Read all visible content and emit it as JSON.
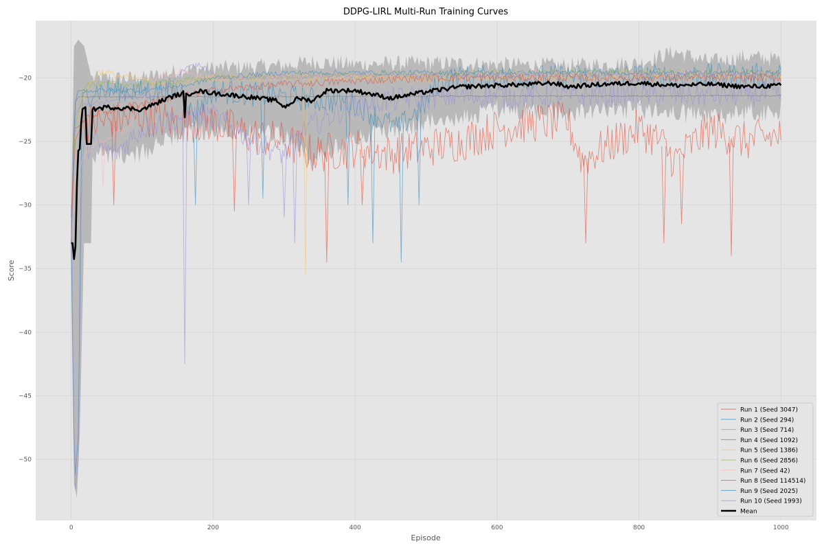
{
  "chart_data": {
    "type": "line",
    "title": "DDPG-LIRL Multi-Run Training Curves",
    "xlabel": "Episode",
    "ylabel": "Score",
    "xlim": [
      -50,
      1050
    ],
    "ylim": [
      -54.8,
      -15.5
    ],
    "xticks": [
      0,
      200,
      400,
      600,
      800,
      1000
    ],
    "yticks": [
      -20,
      -25,
      -30,
      -35,
      -40,
      -45,
      -50
    ],
    "grid": true,
    "legend_position": "lower-right",
    "colors": {
      "plot_bg": "#e5e5e5",
      "grid": "#d3d3d3",
      "mean": "#000000",
      "band": "#a9a9a9"
    },
    "series": [
      {
        "name": "Run 1 (Seed 3047)",
        "color": "#e24a33",
        "points": [
          [
            0,
            -31
          ],
          [
            5,
            -24
          ],
          [
            20,
            -23.5
          ],
          [
            50,
            -23.5
          ],
          [
            100,
            -23
          ],
          [
            150,
            -23.5
          ],
          [
            200,
            -23.5
          ],
          [
            225,
            -24
          ],
          [
            250,
            -24.5
          ],
          [
            300,
            -25
          ],
          [
            340,
            -26
          ],
          [
            400,
            -25.5
          ],
          [
            450,
            -26
          ],
          [
            500,
            -25.5
          ],
          [
            550,
            -25
          ],
          [
            600,
            -24
          ],
          [
            650,
            -23.5
          ],
          [
            700,
            -23.5
          ],
          [
            720,
            -26.5
          ],
          [
            750,
            -25.5
          ],
          [
            800,
            -24
          ],
          [
            830,
            -25
          ],
          [
            850,
            -26.5
          ],
          [
            880,
            -25
          ],
          [
            900,
            -24
          ],
          [
            950,
            -25
          ],
          [
            1000,
            -24.5
          ]
        ],
        "spikes": [
          [
            60,
            -30
          ],
          [
            230,
            -30.5
          ],
          [
            360,
            -34.5
          ],
          [
            410,
            -30
          ],
          [
            725,
            -33
          ],
          [
            835,
            -33
          ],
          [
            860,
            -31.5
          ],
          [
            930,
            -34
          ]
        ]
      },
      {
        "name": "Run 2 (Seed 294)",
        "color": "#348abd",
        "points": [
          [
            0,
            -33
          ],
          [
            5,
            -52
          ],
          [
            10,
            -48
          ],
          [
            15,
            -22
          ],
          [
            30,
            -21
          ],
          [
            100,
            -21
          ],
          [
            160,
            -21
          ],
          [
            170,
            -23
          ],
          [
            200,
            -21
          ],
          [
            300,
            -21.5
          ],
          [
            400,
            -22
          ],
          [
            460,
            -24
          ],
          [
            500,
            -22
          ],
          [
            520,
            -20
          ],
          [
            1000,
            -19.8
          ]
        ],
        "spikes": [
          [
            175,
            -30
          ],
          [
            270,
            -29.5
          ],
          [
            390,
            -30
          ],
          [
            425,
            -33
          ],
          [
            465,
            -34.5
          ],
          [
            490,
            -30
          ]
        ]
      },
      {
        "name": "Run 3 (Seed 714)",
        "color": "#988ed5",
        "points": [
          [
            0,
            -30
          ],
          [
            5,
            -53
          ],
          [
            10,
            -50
          ],
          [
            15,
            -26
          ],
          [
            30,
            -25
          ],
          [
            60,
            -26
          ],
          [
            100,
            -24
          ],
          [
            160,
            -23
          ],
          [
            200,
            -23
          ],
          [
            260,
            -25
          ],
          [
            300,
            -26
          ],
          [
            330,
            -24
          ],
          [
            400,
            -22
          ],
          [
            500,
            -21.5
          ],
          [
            1000,
            -21.3
          ]
        ],
        "spikes": [
          [
            160,
            -42.5
          ],
          [
            250,
            -30
          ],
          [
            300,
            -31
          ],
          [
            315,
            -33
          ]
        ]
      },
      {
        "name": "Run 4 (Seed 1092)",
        "color": "#777777",
        "points": [
          [
            0,
            -33
          ],
          [
            5,
            -22
          ],
          [
            10,
            -21.5
          ],
          [
            1000,
            -21.4
          ]
        ],
        "spikes": []
      },
      {
        "name": "Run 5 (Seed 1386)",
        "color": "#fbc15e",
        "points": [
          [
            0,
            -33
          ],
          [
            5,
            -24
          ],
          [
            20,
            -21
          ],
          [
            40,
            -19.5
          ],
          [
            80,
            -20
          ],
          [
            150,
            -20.5
          ],
          [
            200,
            -20
          ],
          [
            300,
            -20
          ],
          [
            400,
            -20
          ],
          [
            600,
            -20
          ],
          [
            800,
            -19.8
          ],
          [
            1000,
            -19.8
          ]
        ],
        "spikes": [
          [
            330,
            -35.5
          ]
        ]
      },
      {
        "name": "Run 6 (Seed 2856)",
        "color": "#8eba42",
        "points": [
          [
            0,
            -33
          ],
          [
            5,
            -24
          ],
          [
            20,
            -20.5
          ],
          [
            100,
            -20.5
          ],
          [
            200,
            -20
          ],
          [
            400,
            -19.8
          ],
          [
            600,
            -19.6
          ],
          [
            800,
            -19.5
          ],
          [
            1000,
            -19.6
          ]
        ],
        "spikes": []
      },
      {
        "name": "Run 7 (Seed 42)",
        "color": "#ffb5b8",
        "points": [
          [
            0,
            -33
          ],
          [
            5,
            -28
          ],
          [
            20,
            -26
          ],
          [
            40,
            -25
          ],
          [
            80,
            -24
          ],
          [
            120,
            -20
          ],
          [
            160,
            -19.6
          ],
          [
            200,
            -20
          ],
          [
            400,
            -19.8
          ],
          [
            700,
            -19.6
          ],
          [
            1000,
            -19.6
          ]
        ],
        "spikes": [
          [
            45,
            -28.5
          ]
        ]
      },
      {
        "name": "Run 8 (Seed 114514)",
        "color": "#e24a33",
        "points": [
          [
            0,
            -33
          ],
          [
            5,
            -25
          ],
          [
            20,
            -23
          ],
          [
            60,
            -22.5
          ],
          [
            100,
            -22
          ],
          [
            150,
            -21.5
          ],
          [
            200,
            -21
          ],
          [
            300,
            -20.5
          ],
          [
            500,
            -20
          ],
          [
            1000,
            -20
          ]
        ],
        "spikes": []
      },
      {
        "name": "Run 9 (Seed 2025)",
        "color": "#348abd",
        "points": [
          [
            0,
            -33
          ],
          [
            5,
            -22
          ],
          [
            10,
            -21
          ],
          [
            100,
            -21
          ],
          [
            170,
            -20.5
          ],
          [
            200,
            -20
          ],
          [
            300,
            -19.6
          ],
          [
            500,
            -19.6
          ],
          [
            1000,
            -19.6
          ]
        ],
        "spikes": []
      },
      {
        "name": "Run 10 (Seed 1993)",
        "color": "#988ed5",
        "points": [
          [
            0,
            -33
          ],
          [
            5,
            -23
          ],
          [
            15,
            -22
          ],
          [
            40,
            -22
          ],
          [
            80,
            -21.5
          ],
          [
            120,
            -21.5
          ],
          [
            165,
            -19
          ],
          [
            180,
            -19
          ],
          [
            210,
            -20
          ],
          [
            400,
            -19.8
          ],
          [
            1000,
            -19.7
          ]
        ],
        "spikes": []
      }
    ],
    "mean": {
      "name": "Mean",
      "points": [
        [
          0,
          -33
        ],
        [
          3,
          -33
        ],
        [
          5,
          -35.5
        ],
        [
          7,
          -31
        ],
        [
          9,
          -25.8
        ],
        [
          12,
          -25.6
        ],
        [
          15,
          -22.5
        ],
        [
          20,
          -22.3
        ],
        [
          22,
          -25.2
        ],
        [
          28,
          -25.2
        ],
        [
          30,
          -22.5
        ],
        [
          50,
          -22.3
        ],
        [
          80,
          -22.4
        ],
        [
          100,
          -22.5
        ],
        [
          120,
          -22
        ],
        [
          140,
          -21.5
        ],
        [
          158,
          -21.2
        ],
        [
          160,
          -23.2
        ],
        [
          162,
          -21.4
        ],
        [
          175,
          -21
        ],
        [
          200,
          -21.2
        ],
        [
          250,
          -21.5
        ],
        [
          290,
          -21.8
        ],
        [
          300,
          -22.3
        ],
        [
          320,
          -21.6
        ],
        [
          340,
          -21.8
        ],
        [
          360,
          -21
        ],
        [
          400,
          -21
        ],
        [
          450,
          -21.6
        ],
        [
          480,
          -21.3
        ],
        [
          500,
          -21.1
        ],
        [
          550,
          -20.7
        ],
        [
          600,
          -20.6
        ],
        [
          650,
          -20.5
        ],
        [
          680,
          -20.4
        ],
        [
          700,
          -20.7
        ],
        [
          750,
          -20.5
        ],
        [
          800,
          -20.4
        ],
        [
          850,
          -20.6
        ],
        [
          900,
          -20.5
        ],
        [
          950,
          -20.7
        ],
        [
          1000,
          -20.6
        ]
      ]
    },
    "band": {
      "upper": [
        [
          0,
          -30.5
        ],
        [
          4,
          -17.5
        ],
        [
          10,
          -17
        ],
        [
          18,
          -17.5
        ],
        [
          30,
          -20.3
        ],
        [
          100,
          -20.3
        ],
        [
          160,
          -19.6
        ],
        [
          200,
          -19.5
        ],
        [
          300,
          -19.3
        ],
        [
          340,
          -19
        ],
        [
          400,
          -19.2
        ],
        [
          500,
          -19.1
        ],
        [
          600,
          -19.2
        ],
        [
          700,
          -19.3
        ],
        [
          800,
          -19.1
        ],
        [
          850,
          -18.2
        ],
        [
          900,
          -19
        ],
        [
          950,
          -18.6
        ],
        [
          1000,
          -18.8
        ]
      ],
      "lower": [
        [
          0,
          -35
        ],
        [
          4,
          -52
        ],
        [
          8,
          -53
        ],
        [
          12,
          -48
        ],
        [
          18,
          -33
        ],
        [
          28,
          -33
        ],
        [
          30,
          -26
        ],
        [
          100,
          -26
        ],
        [
          150,
          -24.5
        ],
        [
          200,
          -24
        ],
        [
          300,
          -24.5
        ],
        [
          340,
          -26.5
        ],
        [
          400,
          -24.5
        ],
        [
          450,
          -24
        ],
        [
          500,
          -23.5
        ],
        [
          600,
          -22.5
        ],
        [
          700,
          -22.8
        ],
        [
          800,
          -22.5
        ],
        [
          900,
          -23
        ],
        [
          1000,
          -22.5
        ]
      ]
    }
  }
}
